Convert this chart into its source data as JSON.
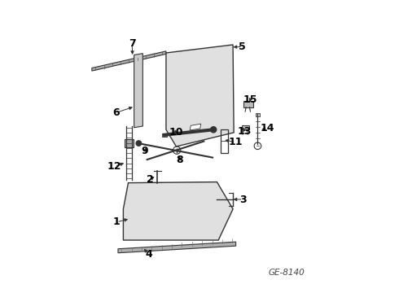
{
  "background_color": "#ffffff",
  "diagram_id": "GE-8140",
  "line_color": "#333333",
  "text_color": "#000000",
  "font_size": 9
}
